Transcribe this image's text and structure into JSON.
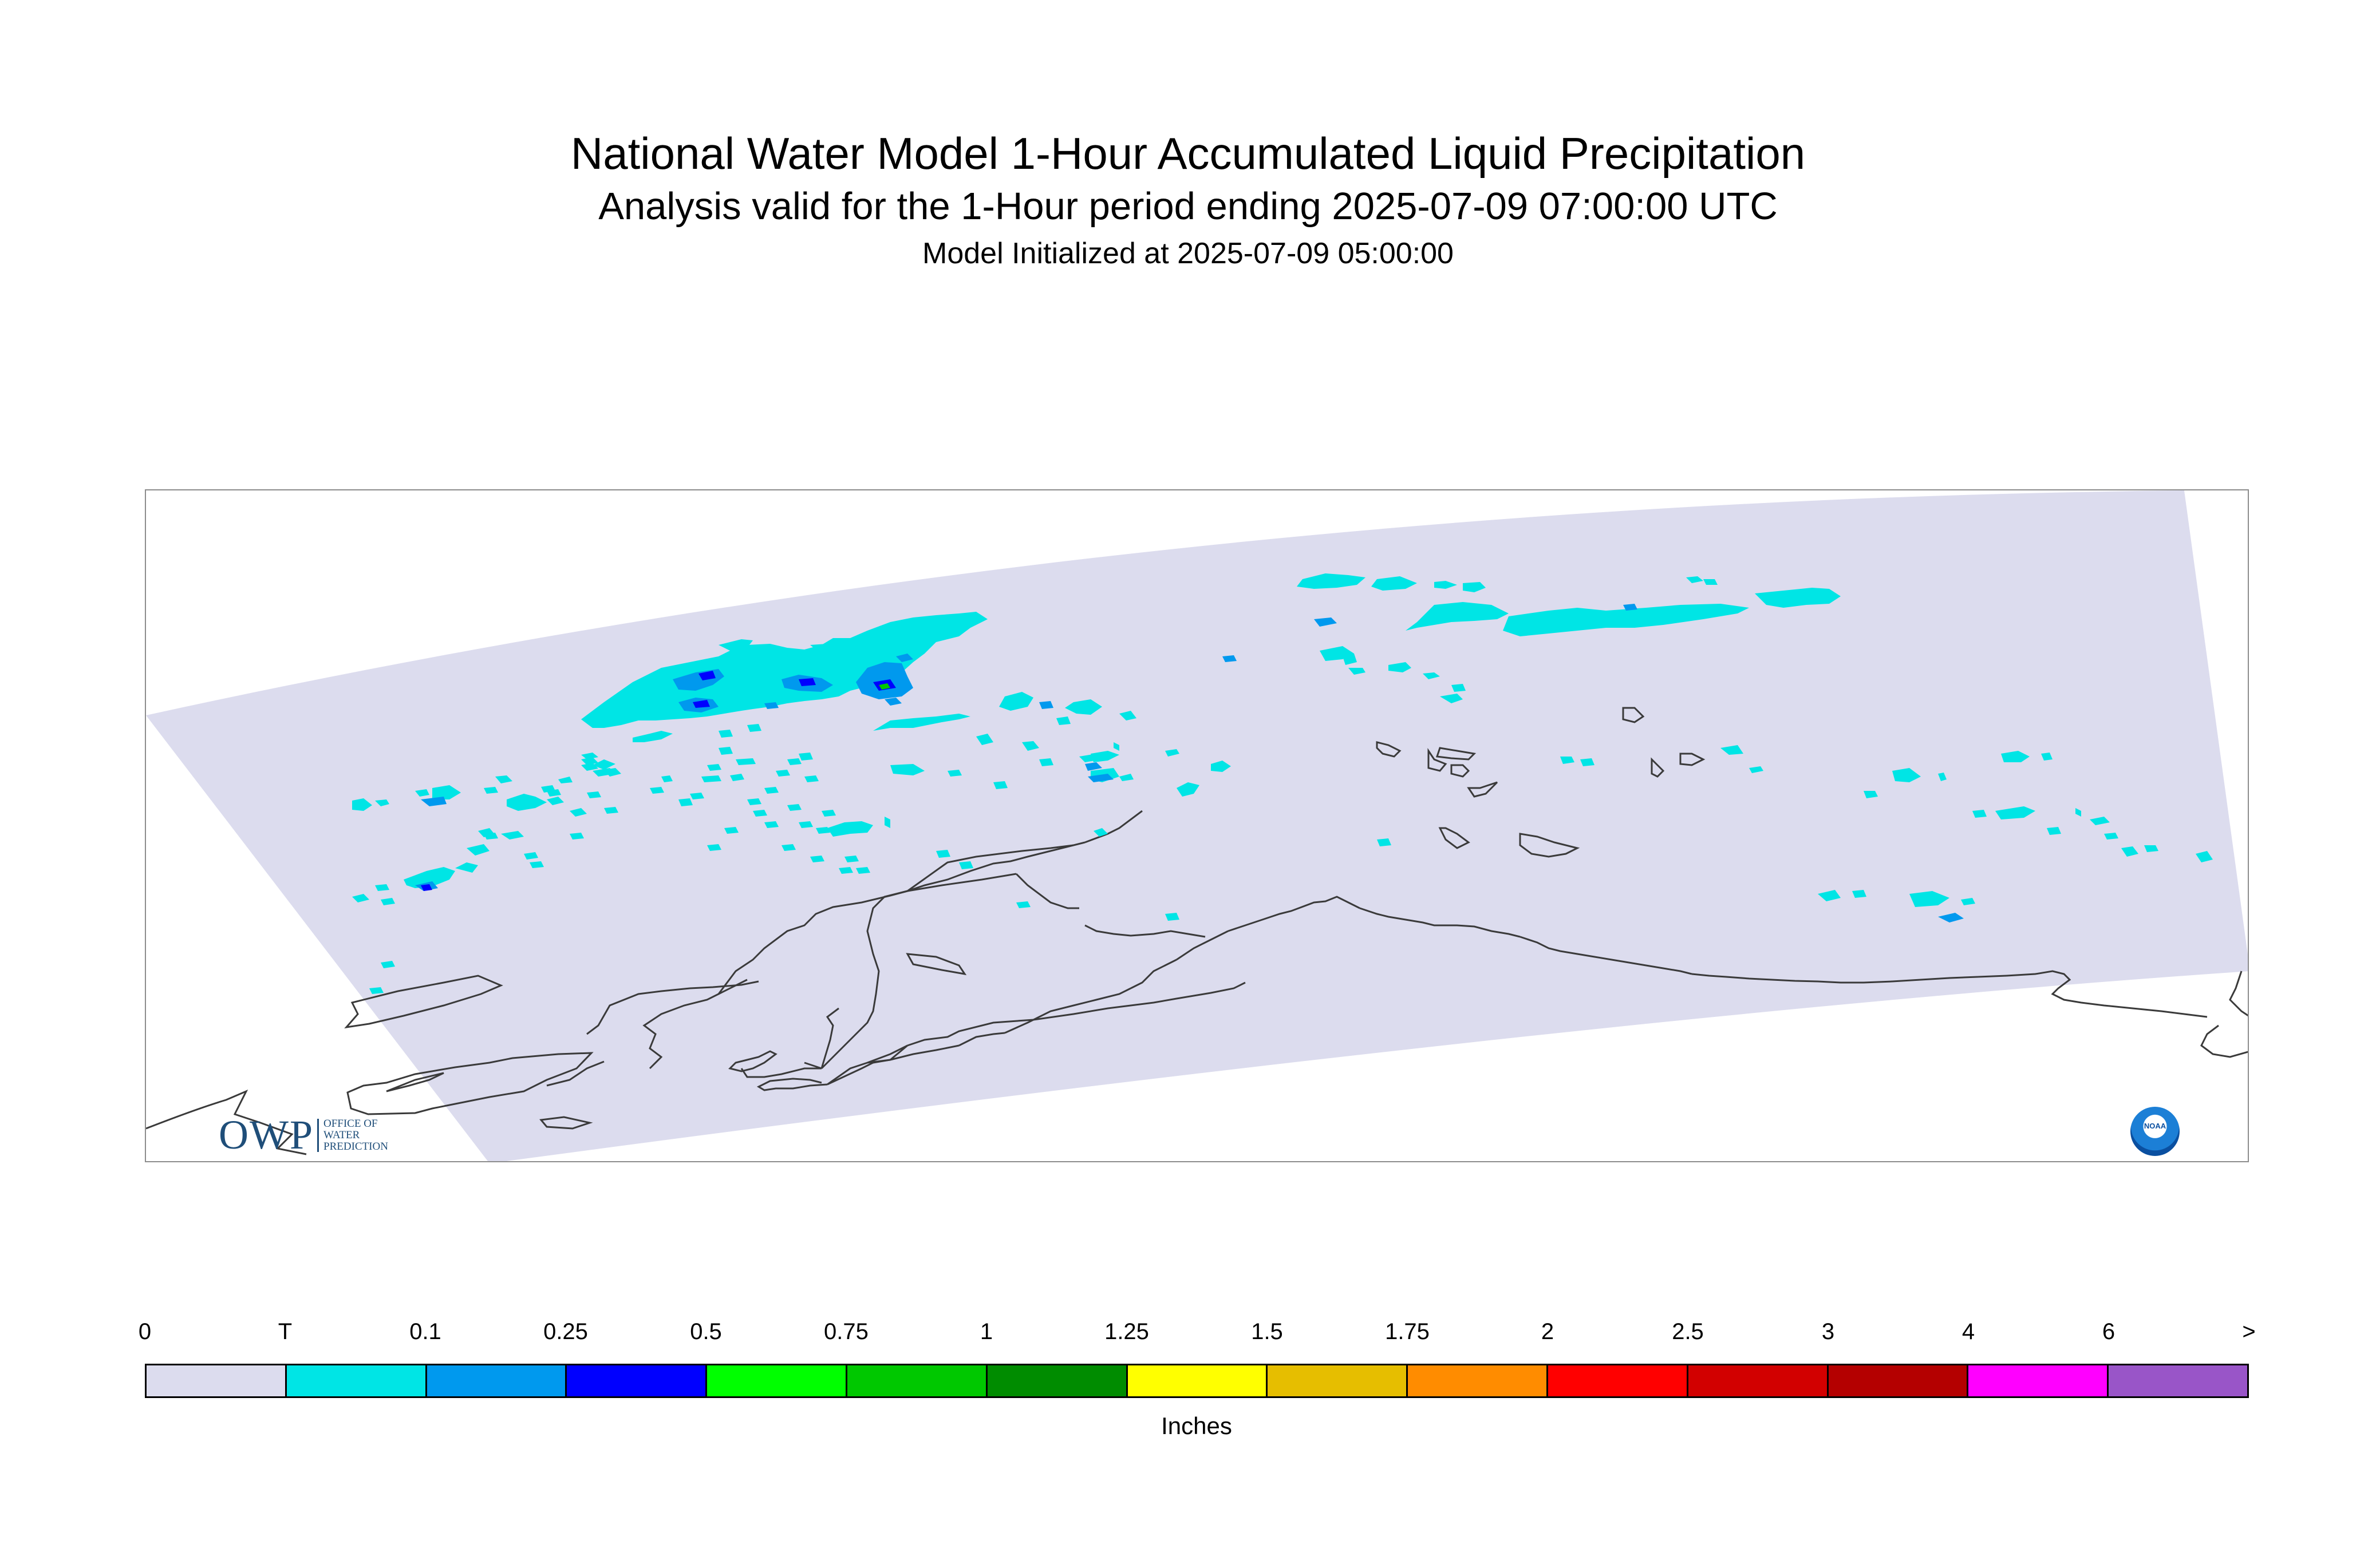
{
  "title": "National Water Model 1-Hour Accumulated Liquid Precipitation",
  "subtitle": "Analysis valid for the 1-Hour period ending 2025-07-09 07:00:00 UTC",
  "init_line": "Model Initialized at 2025-07-09 05:00:00",
  "logos": {
    "owp_mark": "OWP",
    "owp_text": [
      "OFFICE OF",
      "WATER",
      "PREDICTION"
    ],
    "noaa": "NOAA"
  },
  "colorbar": {
    "labels": [
      "0",
      "T",
      "0.1",
      "0.25",
      "0.5",
      "0.75",
      "1",
      "1.25",
      "1.5",
      "1.75",
      "2",
      "2.5",
      "3",
      "4",
      "6",
      ">"
    ],
    "colors": [
      "#dcdcee",
      "#00e5e5",
      "#0099ee",
      "#0000ff",
      "#00ff00",
      "#00c800",
      "#008c00",
      "#ffff00",
      "#e6be00",
      "#ff8c00",
      "#ff0000",
      "#d20000",
      "#b40000",
      "#ff00ff",
      "#9955c8"
    ],
    "units": "Inches"
  },
  "map_colors": {
    "domain": "#dcdcee",
    "coast": "#3a3a3a",
    "trace": "#00e5e5",
    "light": "#0099ee",
    "moderate": "#0000ff",
    "heavy": "#00c800"
  }
}
